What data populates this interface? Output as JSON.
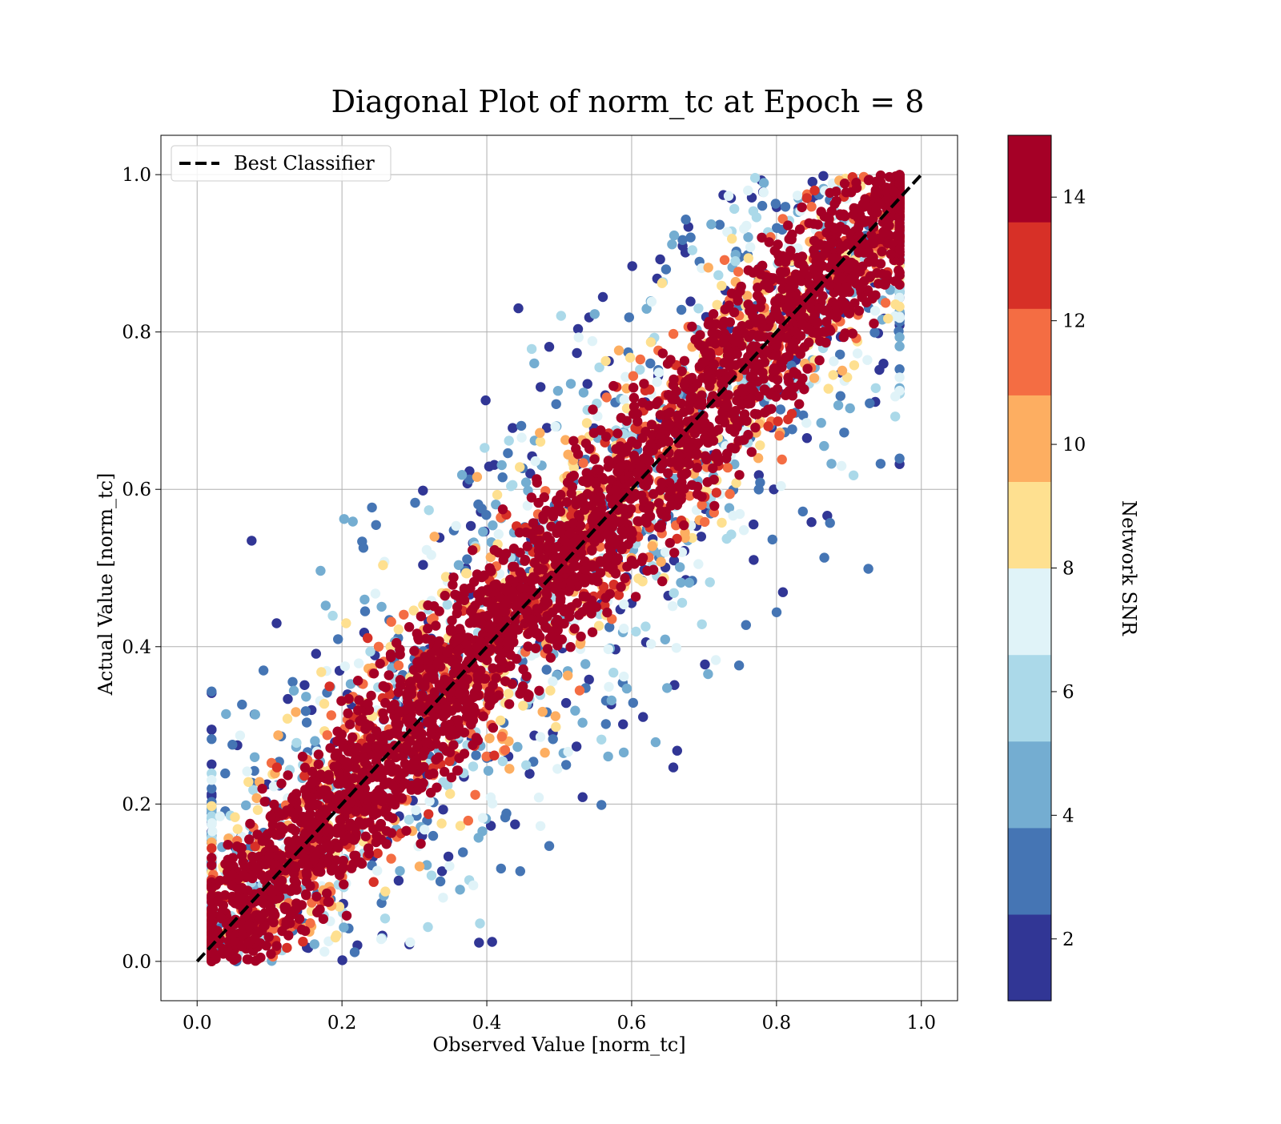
{
  "chart_data": {
    "type": "scatter",
    "title": "Diagonal Plot of norm_tc at Epoch = 8",
    "xlabel": "Observed Value [norm_tc]",
    "ylabel": "Actual Value [norm_tc]",
    "xlim": [
      -0.05,
      1.05
    ],
    "ylim": [
      -0.05,
      1.05
    ],
    "xticks": [
      "0.0",
      "0.2",
      "0.4",
      "0.6",
      "0.8",
      "1.0"
    ],
    "yticks": [
      "0.0",
      "0.2",
      "0.4",
      "0.6",
      "0.8",
      "1.0"
    ],
    "grid": true,
    "legend": {
      "position": "top-left",
      "entries": [
        {
          "label": "Best Classifier",
          "style": "dashed",
          "color": "#000000"
        }
      ]
    },
    "reference_line": {
      "name": "Best Classifier",
      "x": [
        0.0,
        1.0
      ],
      "y": [
        0.0,
        1.0
      ]
    },
    "scatter_description": {
      "point_count_estimate": "tens of thousands",
      "x_range": [
        0.02,
        0.97
      ],
      "y_range": [
        0.0,
        1.0
      ],
      "structure": "points cluster around the y = x diagonal; high-SNR points (dark red) form a tight band of roughly +/-0.1 around the diagonal, lower-SNR points spread into wider off-diagonal wedges (upper-left and lower-right), clipped to y in [0, 1]",
      "approx_spread_by_snr": [
        {
          "snr": 2,
          "spread": 0.32
        },
        {
          "snr": 4,
          "spread": 0.28
        },
        {
          "snr": 6,
          "spread": 0.24
        },
        {
          "snr": 8,
          "spread": 0.2
        },
        {
          "snr": 10,
          "spread": 0.16
        },
        {
          "snr": 12,
          "spread": 0.13
        },
        {
          "snr": 14,
          "spread": 0.1
        }
      ]
    },
    "colorbar": {
      "label": "Network SNR",
      "range": [
        1,
        15
      ],
      "ticks": [
        "2",
        "4",
        "6",
        "8",
        "10",
        "12",
        "14"
      ],
      "tick_values": [
        2,
        4,
        6,
        8,
        10,
        12,
        14
      ],
      "bins": 10,
      "colors": [
        "#313695",
        "#4575b4",
        "#74add1",
        "#abd9e9",
        "#e0f3f8",
        "#fee090",
        "#fdae61",
        "#f46d43",
        "#d73027",
        "#a50026"
      ]
    }
  }
}
